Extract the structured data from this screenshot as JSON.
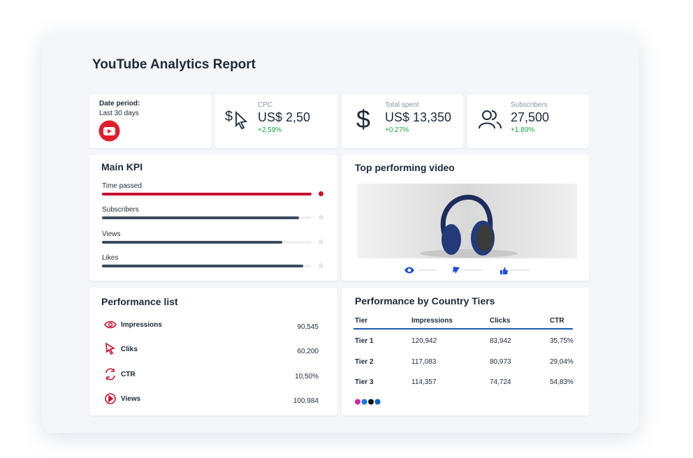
{
  "header": {
    "title": "YouTube Analytics Report"
  },
  "summary": {
    "date_label": "Date period:",
    "date_value": "Last 30 days",
    "metrics": [
      {
        "label": "CPC",
        "value": "US$ 2,50",
        "change": "+2.59%"
      },
      {
        "label": "Total spent",
        "value": "US$ 13,350",
        "change": "+0.27%"
      },
      {
        "label": "Subscribers",
        "value": "27,500",
        "change": "+1.89%"
      }
    ]
  },
  "main_kpi": {
    "title": "Main KPI",
    "items": [
      {
        "label": "Time passed",
        "progress": 100
      },
      {
        "label": "Subscribers",
        "progress": 94
      },
      {
        "label": "Views",
        "progress": 86
      },
      {
        "label": "Likes",
        "progress": 96
      }
    ]
  },
  "top_video": {
    "title": "Top performing video"
  },
  "performance_list": {
    "title": "Performance list",
    "items": [
      {
        "label": "Impressions",
        "value": "90,545"
      },
      {
        "label": "Cliks",
        "value": "60,200"
      },
      {
        "label": "CTR",
        "value": "10,50%"
      },
      {
        "label": "Views",
        "value": "100,984"
      }
    ]
  },
  "country_tiers": {
    "title": "Performance by Country Tiers",
    "columns": [
      "Tier",
      "Impressions",
      "Clicks",
      "CTR"
    ],
    "rows": [
      [
        "Tier 1",
        "120,942",
        "83,942",
        "35,75%"
      ],
      [
        "Tier 2",
        "117,083",
        "80,973",
        "29,04%"
      ],
      [
        "Tier 3",
        "114,357",
        "74,724",
        "54,83%"
      ]
    ]
  }
}
